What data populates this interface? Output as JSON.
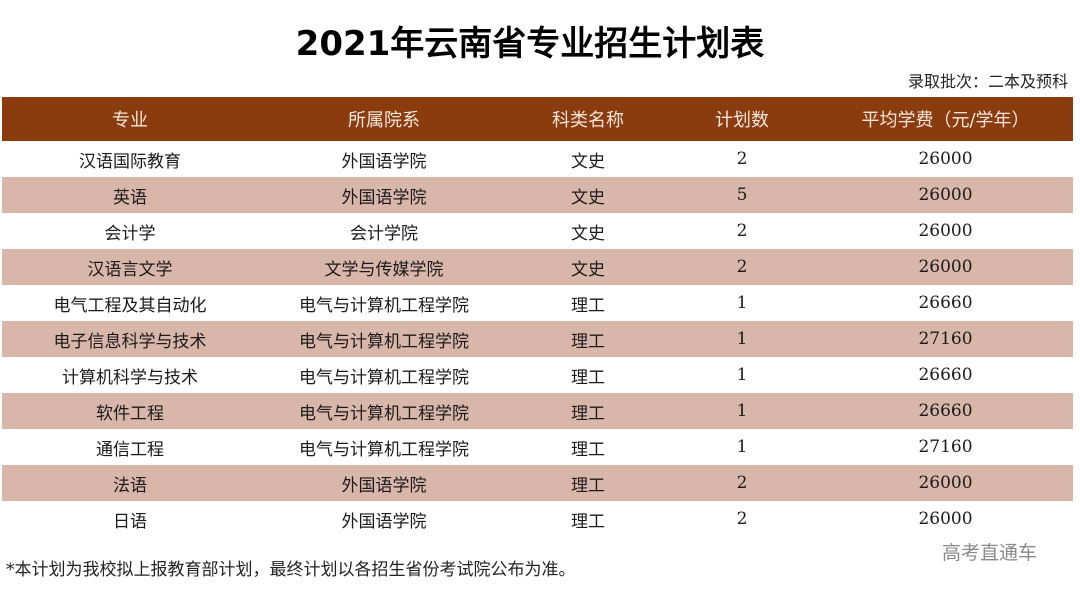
{
  "document": {
    "title": "2021年云南省专业招生计划表",
    "batch_label": "录取批次：二本及预科",
    "footnote": "*本计划为我校拟上报教育部计划，最终计划以各招生省份考试院公布为准。",
    "watermark": "高考直通车"
  },
  "colors": {
    "header_bg": "#8b3c0f",
    "header_text": "#f3e6dc",
    "alt_row_bg": "#d9b6aa",
    "plain_row_bg": "#ffffff"
  },
  "table": {
    "headers": [
      "专业",
      "所属院系",
      "科类名称",
      "计划数",
      "平均学费（元/学年）"
    ],
    "rows": [
      [
        "汉语国际教育",
        "外国语学院",
        "文史",
        "2",
        "26000"
      ],
      [
        "英语",
        "外国语学院",
        "文史",
        "5",
        "26000"
      ],
      [
        "会计学",
        "会计学院",
        "文史",
        "2",
        "26000"
      ],
      [
        "汉语言文学",
        "文学与传媒学院",
        "文史",
        "2",
        "26000"
      ],
      [
        "电气工程及其自动化",
        "电气与计算机工程学院",
        "理工",
        "1",
        "26660"
      ],
      [
        "电子信息科学与技术",
        "电气与计算机工程学院",
        "理工",
        "1",
        "27160"
      ],
      [
        "计算机科学与技术",
        "电气与计算机工程学院",
        "理工",
        "1",
        "26660"
      ],
      [
        "软件工程",
        "电气与计算机工程学院",
        "理工",
        "1",
        "26660"
      ],
      [
        "通信工程",
        "电气与计算机工程学院",
        "理工",
        "1",
        "27160"
      ],
      [
        "法语",
        "外国语学院",
        "理工",
        "2",
        "26000"
      ],
      [
        "日语",
        "外国语学院",
        "理工",
        "2",
        "26000"
      ]
    ]
  }
}
